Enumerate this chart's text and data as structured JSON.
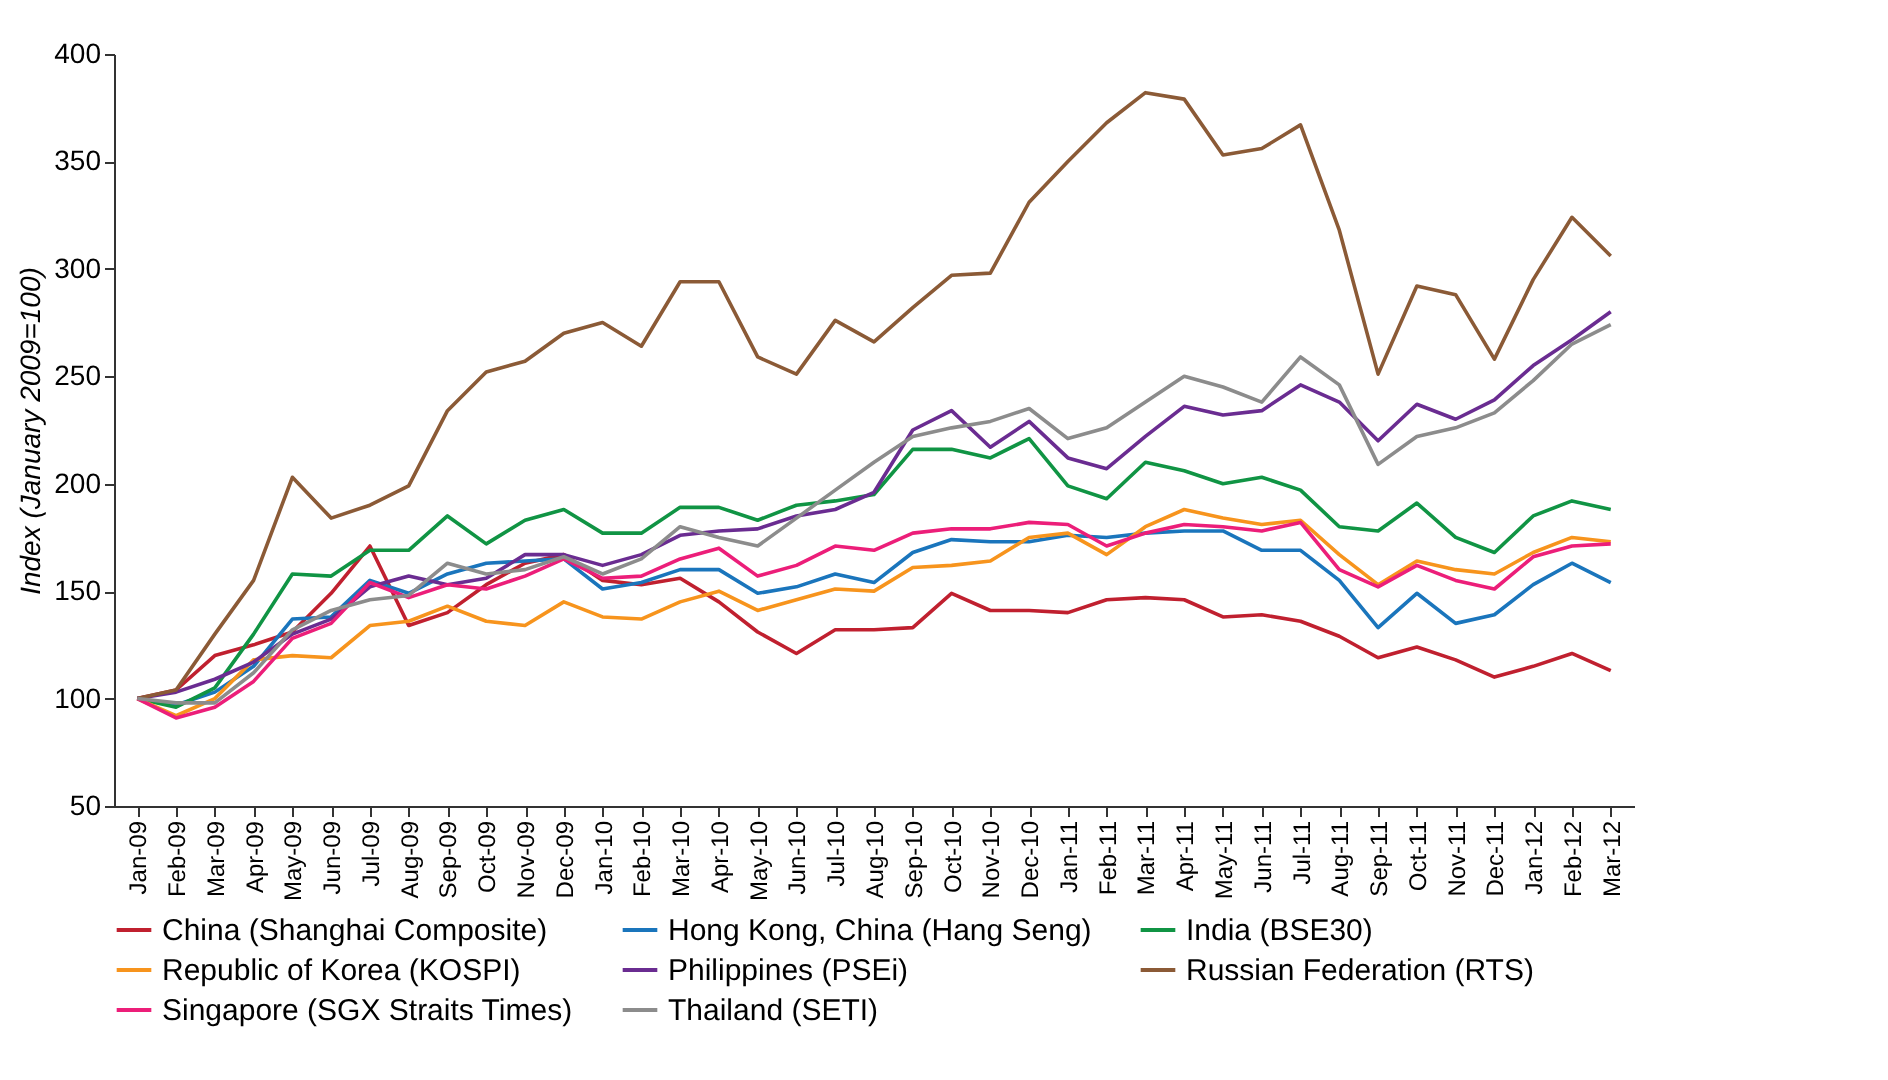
{
  "chart_data": {
    "type": "line",
    "ylabel": "Index (January 2009=100)",
    "categories": [
      "Jan-09",
      "Feb-09",
      "Mar-09",
      "Apr-09",
      "May-09",
      "Jun-09",
      "Jul-09",
      "Aug-09",
      "Sep-09",
      "Oct-09",
      "Nov-09",
      "Dec-09",
      "Jan-10",
      "Feb-10",
      "Mar-10",
      "Apr-10",
      "May-10",
      "Jun-10",
      "Jul-10",
      "Aug-10",
      "Sep-10",
      "Oct-10",
      "Nov-10",
      "Dec-10",
      "Jan-11",
      "Feb-11",
      "Mar-11",
      "Apr-11",
      "May-11",
      "Jun-11",
      "Jul-11",
      "Aug-11",
      "Sep-11",
      "Oct-11",
      "Nov-11",
      "Dec-11",
      "Jan-12",
      "Feb-12",
      "Mar-12"
    ],
    "series": [
      {
        "name": "China (Shanghai Composite)",
        "color": "#c0202f",
        "values": [
          100,
          104,
          120,
          125,
          131,
          149,
          171,
          134,
          140,
          153,
          163,
          167,
          155,
          153,
          156,
          145,
          131,
          121,
          132,
          132,
          133,
          149,
          141,
          141,
          140,
          146,
          147,
          146,
          138,
          139,
          136,
          129,
          119,
          124,
          118,
          110,
          115,
          121,
          113
        ]
      },
      {
        "name": "Hong Kong, China (Hang Seng)",
        "color": "#1a75bc",
        "values": [
          100,
          97,
          103,
          115,
          137,
          138,
          155,
          149,
          158,
          163,
          164,
          165,
          151,
          154,
          160,
          160,
          149,
          152,
          158,
          154,
          168,
          174,
          173,
          173,
          176,
          175,
          177,
          178,
          178,
          169,
          169,
          155,
          133,
          149,
          135,
          139,
          153,
          163,
          154
        ]
      },
      {
        "name": "India (BSE30)",
        "color": "#109444",
        "values": [
          100,
          96,
          105,
          130,
          158,
          157,
          169,
          169,
          185,
          172,
          183,
          188,
          177,
          177,
          189,
          189,
          183,
          190,
          192,
          195,
          216,
          216,
          212,
          221,
          199,
          193,
          210,
          206,
          200,
          203,
          197,
          180,
          178,
          191,
          175,
          168,
          185,
          192,
          188
        ]
      },
      {
        "name": "Republic of Korea (KOSPI)",
        "color": "#f7941d",
        "values": [
          100,
          92,
          100,
          118,
          120,
          119,
          134,
          136,
          143,
          136,
          134,
          145,
          138,
          137,
          145,
          150,
          141,
          146,
          151,
          150,
          161,
          162,
          164,
          175,
          177,
          167,
          180,
          188,
          184,
          181,
          183,
          167,
          153,
          164,
          160,
          158,
          168,
          175,
          173
        ]
      },
      {
        "name": "Philippines (PSEi)",
        "color": "#6a2c91",
        "values": [
          100,
          103,
          109,
          117,
          130,
          137,
          152,
          157,
          153,
          156,
          167,
          167,
          162,
          167,
          176,
          178,
          179,
          185,
          188,
          196,
          225,
          234,
          217,
          229,
          212,
          207,
          222,
          236,
          232,
          234,
          246,
          238,
          220,
          237,
          230,
          239,
          255,
          267,
          280
        ]
      },
      {
        "name": "Russian Federation (RTS)",
        "color": "#8b5a36",
        "values": [
          100,
          104,
          130,
          155,
          203,
          184,
          190,
          199,
          234,
          252,
          257,
          270,
          275,
          264,
          294,
          294,
          259,
          251,
          276,
          266,
          282,
          297,
          298,
          331,
          350,
          368,
          382,
          379,
          353,
          356,
          367,
          318,
          251,
          292,
          288,
          258,
          295,
          324,
          306
        ]
      },
      {
        "name": "Singapore (SGX Straits Times)",
        "color": "#ec1e79",
        "values": [
          100,
          91,
          96,
          108,
          128,
          135,
          154,
          147,
          153,
          151,
          157,
          165,
          156,
          157,
          165,
          170,
          157,
          162,
          171,
          169,
          177,
          179,
          179,
          182,
          181,
          171,
          177,
          181,
          180,
          178,
          182,
          160,
          152,
          162,
          155,
          151,
          166,
          171,
          172
        ]
      },
      {
        "name": "Thailand (SETI)",
        "color": "#8c8c8c",
        "values": [
          100,
          98,
          98,
          112,
          132,
          141,
          146,
          148,
          163,
          158,
          160,
          166,
          158,
          165,
          180,
          175,
          171,
          184,
          197,
          210,
          222,
          226,
          229,
          235,
          221,
          226,
          238,
          250,
          245,
          238,
          259,
          246,
          209,
          222,
          226,
          233,
          248,
          265,
          274
        ]
      }
    ],
    "ylim": [
      50,
      400
    ],
    "yticks": [
      50,
      100,
      150,
      200,
      250,
      300,
      350,
      400
    ],
    "grid": false,
    "legend": "bottom"
  }
}
